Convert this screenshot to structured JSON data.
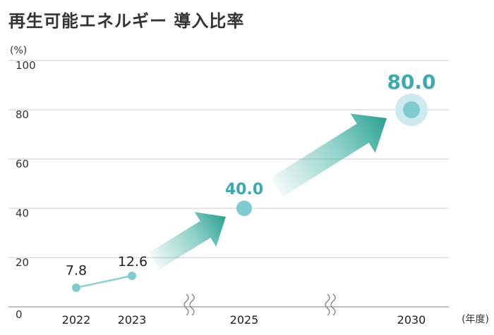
{
  "title": "再生可能エネルギー 導入比率",
  "chart_data": {
    "type": "line",
    "title": "再生可能エネルギー 導入比率",
    "y_unit": "(%)",
    "x_unit": "(年度)",
    "ylim": [
      0,
      100
    ],
    "yticks": [
      "0",
      "20",
      "40",
      "60",
      "80",
      "100"
    ],
    "grid": true,
    "x": [
      "2022",
      "2023",
      "2025",
      "2030"
    ],
    "values": [
      7.8,
      12.6,
      40.0,
      80.0
    ],
    "labels": [
      "7.8",
      "12.6",
      "40.0",
      "80.0"
    ],
    "axis_break_between": [
      [
        "2023",
        "2025"
      ],
      [
        "2025",
        "2030"
      ]
    ],
    "colors": {
      "line": "#8ccfd4",
      "marker": "#7ecbd0",
      "highlight": "#3aa9b0",
      "arrow": "#2fa598"
    }
  }
}
